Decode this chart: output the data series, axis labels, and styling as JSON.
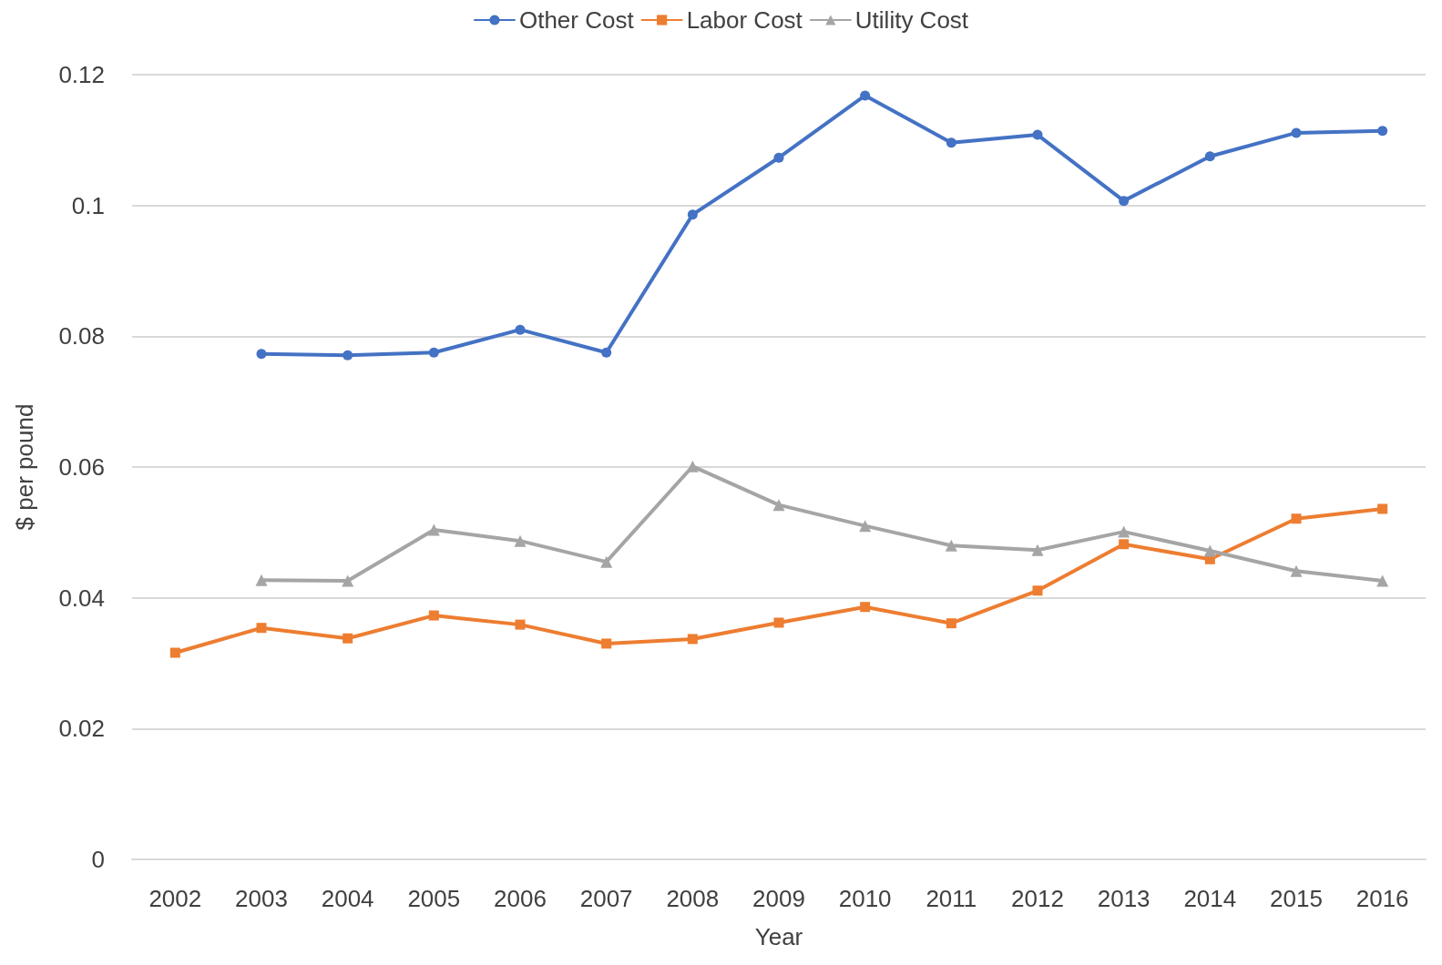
{
  "chart_data": {
    "type": "line",
    "xlabel": "Year",
    "ylabel": "$ per pound",
    "categories": [
      "2002",
      "2003",
      "2004",
      "2005",
      "2006",
      "2007",
      "2008",
      "2009",
      "2010",
      "2011",
      "2012",
      "2013",
      "2014",
      "2015",
      "2016"
    ],
    "series": [
      {
        "name": "Other Cost",
        "color": "#4472c4",
        "marker": "circle",
        "values": [
          null,
          0.0773,
          0.0771,
          0.0775,
          0.081,
          0.0775,
          0.0986,
          0.1073,
          0.1168,
          0.1096,
          0.1108,
          0.1007,
          0.1075,
          0.1111,
          0.1114
        ]
      },
      {
        "name": "Labor Cost",
        "color": "#ed7d31",
        "marker": "square",
        "values": [
          0.0316,
          0.0354,
          0.0338,
          0.0373,
          0.0359,
          0.033,
          0.0337,
          0.0362,
          0.0386,
          0.0361,
          0.0411,
          0.0482,
          0.0459,
          0.0521,
          0.0536
        ]
      },
      {
        "name": "Utility Cost",
        "color": "#a5a5a5",
        "marker": "triangle",
        "values": [
          null,
          0.0427,
          0.0426,
          0.0504,
          0.0487,
          0.0455,
          0.0601,
          0.0542,
          0.051,
          0.048,
          0.0473,
          0.0501,
          0.0472,
          0.0441,
          0.0426
        ]
      }
    ],
    "ylim": [
      0,
      0.12
    ],
    "yticks": [
      0,
      0.02,
      0.04,
      0.06,
      0.08,
      0.1,
      0.12
    ],
    "grid": "y",
    "legend": "top"
  }
}
